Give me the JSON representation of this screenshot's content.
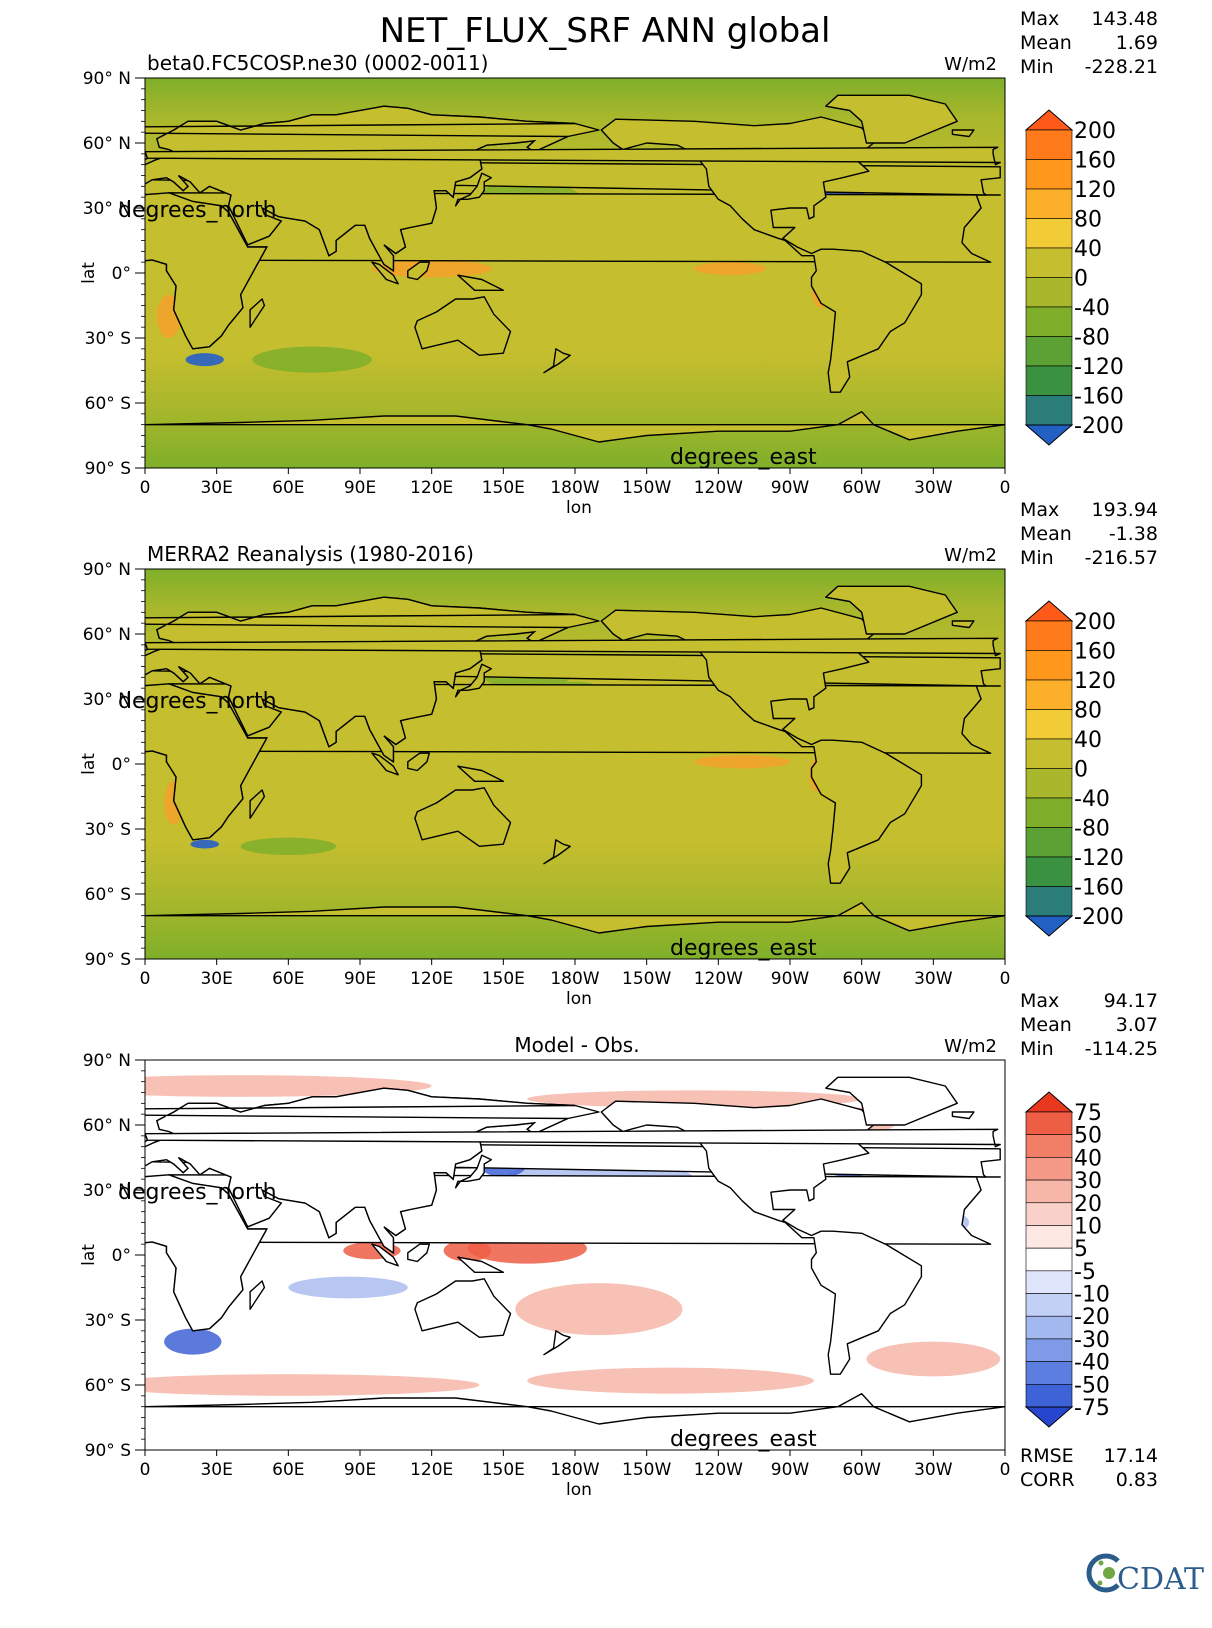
{
  "title": "NET_FLUX_SRF ANN global",
  "colors": {
    "zero": "#c5be2e",
    "land_green": "#a8b72c",
    "mid_green": "#7faf2a",
    "strong_blue": "#1f5bd0",
    "warm_orange": "#f3a12a",
    "diff_red": "#ee5e45",
    "diff_pink": "#f6b6a8",
    "diff_blue": "#3e63d6",
    "diff_lightblue": "#aabdf0"
  },
  "icons": {
    "logo": "cdat-logo"
  },
  "logo_text": "CDAT",
  "chart_data": [
    {
      "type": "heatmap",
      "panel_title": "beta0.FC5COSP.ne30 (0002-0011)",
      "units": "W/m2",
      "stats": [
        {
          "label": "Max",
          "value": "143.48"
        },
        {
          "label": "Mean",
          "value": "1.69"
        },
        {
          "label": "Min",
          "value": "-228.21"
        }
      ],
      "xlabel": "lon",
      "ylabel": "lat",
      "lat_units_label": "degrees_north",
      "lon_units_label": "degrees_east",
      "xticks": [
        "0",
        "30E",
        "60E",
        "90E",
        "120E",
        "150E",
        "180W",
        "150W",
        "120W",
        "90W",
        "60W",
        "30W",
        "0"
      ],
      "yticks": [
        "90° N",
        "60° N",
        "30° N",
        "0°",
        "30° S",
        "60° S",
        "90° S"
      ],
      "colorbar": {
        "levels": [
          "200",
          "160",
          "120",
          "80",
          "40",
          "0",
          "-40",
          "-80",
          "-120",
          "-160",
          "-200"
        ],
        "colors": [
          "#ff5a19",
          "#ff7a1a",
          "#ff971d",
          "#fcb02a",
          "#f2cc36",
          "#c5be2e",
          "#a8b72c",
          "#7faf2a",
          "#5ba133",
          "#3a9140",
          "#2b7d7a",
          "#2360c4"
        ],
        "extend": "both"
      },
      "xlim": [
        0,
        360
      ],
      "ylim": [
        -90,
        90
      ]
    },
    {
      "type": "heatmap",
      "panel_title": "MERRA2 Reanalysis (1980-2016)",
      "units": "W/m2",
      "stats": [
        {
          "label": "Max",
          "value": "193.94"
        },
        {
          "label": "Mean",
          "value": "-1.38"
        },
        {
          "label": "Min",
          "value": "-216.57"
        }
      ],
      "xlabel": "lon",
      "ylabel": "lat",
      "lat_units_label": "degrees_north",
      "lon_units_label": "degrees_east",
      "xticks": [
        "0",
        "30E",
        "60E",
        "90E",
        "120E",
        "150E",
        "180W",
        "150W",
        "120W",
        "90W",
        "60W",
        "30W",
        "0"
      ],
      "yticks": [
        "90° N",
        "60° N",
        "30° N",
        "0°",
        "30° S",
        "60° S",
        "90° S"
      ],
      "colorbar": {
        "levels": [
          "200",
          "160",
          "120",
          "80",
          "40",
          "0",
          "-40",
          "-80",
          "-120",
          "-160",
          "-200"
        ],
        "colors": [
          "#ff5a19",
          "#ff7a1a",
          "#ff971d",
          "#fcb02a",
          "#f2cc36",
          "#c5be2e",
          "#a8b72c",
          "#7faf2a",
          "#5ba133",
          "#3a9140",
          "#2b7d7a",
          "#2360c4"
        ],
        "extend": "both"
      },
      "xlim": [
        0,
        360
      ],
      "ylim": [
        -90,
        90
      ]
    },
    {
      "type": "heatmap",
      "panel_title": "Model - Obs.",
      "units": "W/m2",
      "stats": [
        {
          "label": "Max",
          "value": "94.17"
        },
        {
          "label": "Mean",
          "value": "3.07"
        },
        {
          "label": "Min",
          "value": "-114.25"
        }
      ],
      "extra_stats": [
        {
          "label": "RMSE",
          "value": "17.14"
        },
        {
          "label": "CORR",
          "value": "0.83"
        }
      ],
      "xlabel": "lon",
      "ylabel": "lat",
      "lat_units_label": "degrees_north",
      "lon_units_label": "degrees_east",
      "xticks": [
        "0",
        "30E",
        "60E",
        "90E",
        "120E",
        "150E",
        "180W",
        "150W",
        "120W",
        "90W",
        "60W",
        "30W",
        "0"
      ],
      "yticks": [
        "90° N",
        "60° N",
        "30° N",
        "0°",
        "30° S",
        "60° S",
        "90° S"
      ],
      "colorbar": {
        "levels": [
          "75",
          "50",
          "40",
          "30",
          "20",
          "10",
          "5",
          "-5",
          "-10",
          "-20",
          "-30",
          "-40",
          "-50",
          "-75"
        ],
        "colors": [
          "#e8381f",
          "#ee5e45",
          "#f17e67",
          "#f49988",
          "#f6b6a8",
          "#f9d1c8",
          "#fde8e3",
          "#ffffff",
          "#dfe6fb",
          "#c2d0f6",
          "#a4b8f0",
          "#7f9be8",
          "#5c7ee0",
          "#3e63d6",
          "#2646ce"
        ],
        "extend": "both"
      },
      "xlim": [
        0,
        360
      ],
      "ylim": [
        -90,
        90
      ]
    }
  ]
}
